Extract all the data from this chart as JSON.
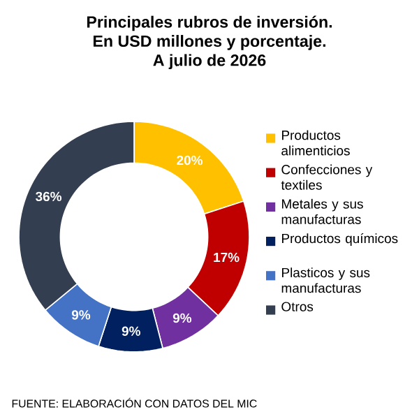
{
  "chart_data": {
    "type": "donut",
    "title": "Principales rubros de inversión.",
    "subtitle": "En USD millones y porcentaje.",
    "annotations": [
      "A julio de 2026",
      "FUENTE: ELABORACIÓN CON DATOS DEL MIC"
    ],
    "categories": [
      "Productos alimenticios",
      "Confecciones y textiles",
      "Metales y sus manufacturas",
      "Productos químicos",
      "Plasticos y sus manufacturas",
      "Otros"
    ],
    "values": [
      20,
      17,
      9,
      9,
      9,
      36
    ],
    "colors": [
      "#ffc000",
      "#c00000",
      "#7030a0",
      "#002060",
      "#4472c4",
      "#333f50"
    ],
    "value_labels": [
      "20%",
      "17%",
      "9%",
      "9%",
      "9%",
      "36%"
    ],
    "legend": "right"
  }
}
